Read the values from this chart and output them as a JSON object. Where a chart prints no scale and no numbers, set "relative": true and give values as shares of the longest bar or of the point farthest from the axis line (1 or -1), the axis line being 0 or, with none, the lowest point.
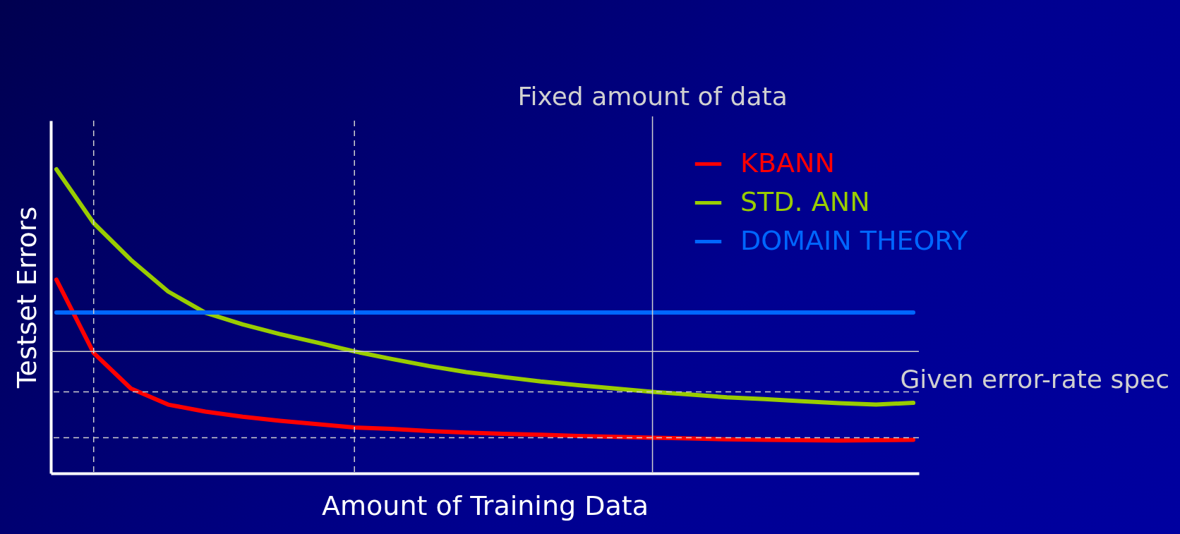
{
  "chart_data": {
    "type": "line",
    "relative": true,
    "xlabel": "Amount of Training Data",
    "ylabel": "Testset Errors",
    "legend": "top right",
    "grid": false,
    "marker": "none",
    "line_style": "solid",
    "annotations": [
      "Fixed amount of data"
    ],
    "categories": [
      null,
      null,
      null,
      null,
      null,
      null,
      null,
      null,
      null,
      null,
      null,
      null,
      null,
      null,
      null,
      null,
      null,
      null,
      null,
      null,
      null,
      null,
      null,
      null
    ],
    "series": [
      {
        "name": "KBANN",
        "color": "#ff0000",
        "values": [
          0.637,
          0.396,
          0.279,
          0.226,
          0.203,
          0.186,
          0.173,
          0.162,
          0.151,
          0.146,
          0.139,
          0.134,
          0.13,
          0.127,
          0.123,
          0.12,
          0.117,
          0.115,
          0.112,
          0.11,
          0.109,
          0.108,
          0.109,
          0.11
        ]
      },
      {
        "name": "STD. ANN",
        "color": "#99cc00",
        "values": [
          1.0,
          0.823,
          0.702,
          0.598,
          0.528,
          0.49,
          0.458,
          0.43,
          0.401,
          0.376,
          0.353,
          0.333,
          0.317,
          0.302,
          0.29,
          0.279,
          0.268,
          0.259,
          0.25,
          0.244,
          0.237,
          0.231,
          0.226,
          0.232
        ]
      },
      {
        "name": "DOMAIN THEORY",
        "color": "#0066ff",
        "values": [
          0.529,
          0.529,
          0.529,
          0.529,
          0.529,
          0.529,
          0.529,
          0.529,
          0.529,
          0.529,
          0.529,
          0.529,
          0.529,
          0.529,
          0.529,
          0.529,
          0.529,
          0.529,
          0.529,
          0.529,
          0.529,
          0.529,
          0.529,
          0.529
        ]
      }
    ],
    "ref_lines": [
      {
        "axis": "y",
        "value": 0.401,
        "label": "Given error-rate spec",
        "color": "#d0d0d0",
        "line_style": "solid"
      },
      {
        "axis": "y",
        "value": 0.268,
        "color": "#d0d0d0",
        "line_style": "dashed"
      },
      {
        "axis": "y",
        "value": 0.117,
        "color": "#d0d0d0",
        "line_style": "dashed"
      }
    ]
  }
}
